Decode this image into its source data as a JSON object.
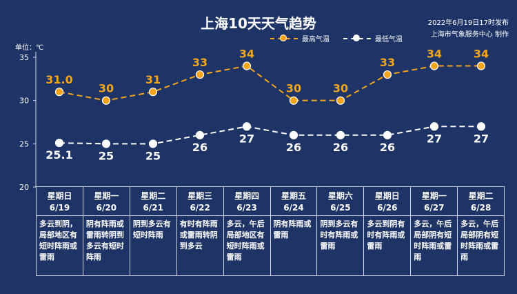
{
  "header": {
    "title": "上海10天天气趋势",
    "publish_time": "2022年6月19日17时发布",
    "producer": "上海市气象服务中心 制作",
    "unit": "单位：℃"
  },
  "legend": {
    "high": {
      "label": "最高气温",
      "color": "#f5a51c"
    },
    "low": {
      "label": "最低气温",
      "color": "#ffffff"
    }
  },
  "chart_data": {
    "type": "line",
    "title": "上海10天天气趋势",
    "ylabel": "单位：℃",
    "ylim": [
      20,
      35
    ],
    "yticks": [
      20,
      25,
      30,
      35
    ],
    "categories": [
      "6/19",
      "6/20",
      "6/21",
      "6/22",
      "6/23",
      "6/24",
      "6/25",
      "6/26",
      "6/27",
      "6/28"
    ],
    "series": [
      {
        "name": "最高气温",
        "color": "#f5a51c",
        "values": [
          31.0,
          30,
          31,
          33,
          34,
          30,
          30,
          33,
          34,
          34
        ],
        "labels": [
          "31.0",
          "30",
          "31",
          "33",
          "34",
          "30",
          "30",
          "33",
          "34",
          "34"
        ]
      },
      {
        "name": "最低气温",
        "color": "#ffffff",
        "values": [
          25.1,
          25,
          25,
          26,
          27,
          26,
          26,
          26,
          27,
          27
        ],
        "labels": [
          "25.1",
          "25",
          "25",
          "26",
          "27",
          "26",
          "26",
          "26",
          "27",
          "27"
        ]
      }
    ],
    "grid": false,
    "legend_position": "top-right"
  },
  "days": [
    {
      "weekday": "星期日",
      "date": "6/19",
      "desc": "多云到阴，\n局部地区有\n短时阵雨或\n雷雨"
    },
    {
      "weekday": "星期一",
      "date": "6/20",
      "desc": "阴有阵雨或\n雷雨转阴到\n多云有短时\n阵雨"
    },
    {
      "weekday": "星期二",
      "date": "6/21",
      "desc": "阴到多云有\n短时阵雨"
    },
    {
      "weekday": "星期三",
      "date": "6/22",
      "desc": "有时有阵雨\n或雷雨转阴\n到多云"
    },
    {
      "weekday": "星期四",
      "date": "6/23",
      "desc": "多云，午后\n局部地区有\n短时阵雨或\n雷雨"
    },
    {
      "weekday": "星期五",
      "date": "6/24",
      "desc": "阴有阵雨或\n雷雨"
    },
    {
      "weekday": "星期六",
      "date": "6/25",
      "desc": "阴到多云有\n时有阵雨或\n雷雨"
    },
    {
      "weekday": "星期日",
      "date": "6/26",
      "desc": "多云到阴有\n时有阵雨或\n雷雨"
    },
    {
      "weekday": "星期一",
      "date": "6/27",
      "desc": "多云，午后\n局部阴有短\n时阵雨或雷\n雨"
    },
    {
      "weekday": "星期二",
      "date": "6/28",
      "desc": "多云，午后\n局部阴有短\n时阵雨或雷\n雨"
    }
  ]
}
